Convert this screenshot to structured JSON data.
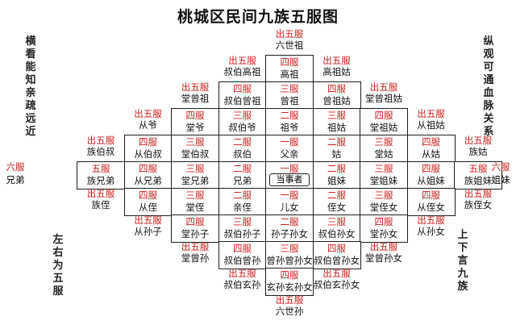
{
  "title": "桃城区民间九族五服图",
  "side_notes": {
    "top_left": "横看能知亲疏远近",
    "top_right": "纵观可通血脉关系",
    "bottom_left": "左右为五服",
    "bottom_right": "上下言九族"
  },
  "rows": [
    [
      {
        "c": 6,
        "a": "出五服",
        "b": "六世祖",
        "o": true
      }
    ],
    [
      {
        "c": 5,
        "a": "出五服",
        "b": "叔伯高祖",
        "o": true
      },
      {
        "c": 6,
        "a": "四服",
        "b": "高祖"
      },
      {
        "c": 7,
        "a": "出五服",
        "b": "高祖姑",
        "o": true
      }
    ],
    [
      {
        "c": 4,
        "a": "出五服",
        "b": "堂曾祖",
        "o": true
      },
      {
        "c": 5,
        "a": "四服",
        "b": "叔伯曾祖"
      },
      {
        "c": 6,
        "a": "三服",
        "b": "曾祖"
      },
      {
        "c": 7,
        "a": "四服",
        "b": "曾祖姑"
      },
      {
        "c": 8,
        "a": "出五服",
        "b": "堂曾祖姑",
        "o": true
      }
    ],
    [
      {
        "c": 3,
        "a": "出五服",
        "b": "从爷",
        "o": true
      },
      {
        "c": 4,
        "a": "四服",
        "b": "堂爷"
      },
      {
        "c": 5,
        "a": "三服",
        "b": "叔伯爷"
      },
      {
        "c": 6,
        "a": "二服",
        "b": "祖爷"
      },
      {
        "c": 7,
        "a": "三服",
        "b": "祖姑"
      },
      {
        "c": 8,
        "a": "四服",
        "b": "堂祖姑"
      },
      {
        "c": 9,
        "a": "出五服",
        "b": "从祖姑",
        "o": true
      }
    ],
    [
      {
        "c": 2,
        "a": "出五服",
        "b": "族伯叔",
        "o": true
      },
      {
        "c": 3,
        "a": "四服",
        "b": "从伯叔"
      },
      {
        "c": 4,
        "a": "三服",
        "b": "堂伯叔"
      },
      {
        "c": 5,
        "a": "二服",
        "b": "叔伯"
      },
      {
        "c": 6,
        "a": "一服",
        "b": "父亲"
      },
      {
        "c": 7,
        "a": "二服",
        "b": "姑"
      },
      {
        "c": 8,
        "a": "三服",
        "b": "堂姑"
      },
      {
        "c": 9,
        "a": "四服",
        "b": "从姑"
      },
      {
        "c": 10,
        "a": "出五服",
        "b": "族姑",
        "o": true
      }
    ],
    [
      {
        "c": 2,
        "a": "五服",
        "b": "族兄弟"
      },
      {
        "c": 3,
        "a": "四服",
        "b": "从兄弟"
      },
      {
        "c": 4,
        "a": "三服",
        "b": "堂兄弟"
      },
      {
        "c": 5,
        "a": "二服",
        "b": "兄弟"
      },
      {
        "c": 6,
        "a": "一服",
        "b": "当事者",
        "self": true
      },
      {
        "c": 7,
        "a": "二服",
        "b": "姐妹"
      },
      {
        "c": 8,
        "a": "三服",
        "b": "堂姐妹"
      },
      {
        "c": 9,
        "a": "四服",
        "b": "从姐妹"
      },
      {
        "c": 10,
        "a": "五服",
        "b": "族姐妹"
      }
    ],
    [
      {
        "c": 2,
        "a": "出五服",
        "b": "族侄",
        "o": true
      },
      {
        "c": 3,
        "a": "四服",
        "b": "从侄"
      },
      {
        "c": 4,
        "a": "三服",
        "b": "堂侄"
      },
      {
        "c": 5,
        "a": "二服",
        "b": "亲侄"
      },
      {
        "c": 6,
        "a": "一服",
        "b": "儿女"
      },
      {
        "c": 7,
        "a": "二服",
        "b": "侄女"
      },
      {
        "c": 8,
        "a": "三服",
        "b": "堂侄女"
      },
      {
        "c": 9,
        "a": "四服",
        "b": "从侄女"
      },
      {
        "c": 10,
        "a": "出五服",
        "b": "族侄女",
        "o": true
      }
    ],
    [
      {
        "c": 3,
        "a": "出五服",
        "b": "从孙子",
        "o": true
      },
      {
        "c": 4,
        "a": "四服",
        "b": "堂孙子"
      },
      {
        "c": 5,
        "a": "三服",
        "b": "叔伯孙子"
      },
      {
        "c": 6,
        "a": "二服",
        "b": "孙子孙女"
      },
      {
        "c": 7,
        "a": "三服",
        "b": "叔伯孙女"
      },
      {
        "c": 8,
        "a": "四服",
        "b": "堂孙女"
      },
      {
        "c": 9,
        "a": "出五服",
        "b": "从孙女",
        "o": true
      }
    ],
    [
      {
        "c": 4,
        "a": "出五服",
        "b": "堂曾孙",
        "o": true
      },
      {
        "c": 5,
        "a": "四服",
        "b": "叔伯曾孙"
      },
      {
        "c": 6,
        "a": "三服",
        "b": "曾孙曾孙女"
      },
      {
        "c": 7,
        "a": "四服",
        "b": "叔伯曾孙女"
      },
      {
        "c": 8,
        "a": "出五服",
        "b": "堂曾孙女",
        "o": true
      }
    ],
    [
      {
        "c": 5,
        "a": "出五服",
        "b": "叔伯玄孙",
        "o": true
      },
      {
        "c": 6,
        "a": "四服",
        "b": "玄孙玄孙女"
      },
      {
        "c": 7,
        "a": "出五服",
        "b": "叔伯玄孙女",
        "o": true
      }
    ],
    [
      {
        "c": 6,
        "a": "出五服",
        "b": "六世孙",
        "o": true
      }
    ]
  ],
  "ends": [
    {
      "side": "left",
      "a": "六服",
      "b": "兄弟"
    },
    {
      "side": "right",
      "a": "六服",
      "b": "姐妹"
    }
  ]
}
